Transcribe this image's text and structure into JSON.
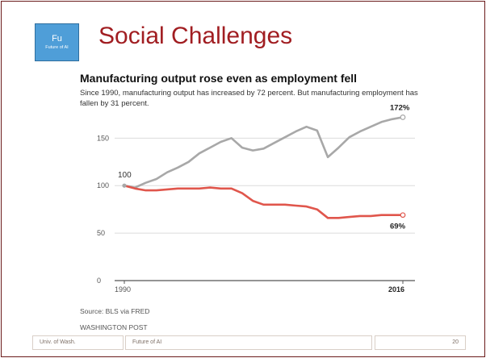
{
  "slide": {
    "badge_big": "Fu",
    "badge_small": "Future of AI",
    "title": "Social Challenges",
    "footer_left": "Univ. of Wash.",
    "footer_center": "Future of AI",
    "footer_right": "20"
  },
  "chart_data": {
    "type": "line",
    "title": "Manufacturing output rose even as employment fell",
    "subtitle": "Since 1990, manufacturing output has increased by 72 percent. But manufacturing employment has fallen by 31 percent.",
    "source": "Source: BLS via FRED",
    "publisher": "WASHINGTON POST",
    "xlabel": "",
    "ylabel": "",
    "x_ticks": [
      "1990",
      "2016"
    ],
    "y_ticks": [
      0,
      50,
      100,
      150
    ],
    "ylim": [
      0,
      180
    ],
    "xlim": [
      1990,
      2016
    ],
    "grid": true,
    "start_label": "100",
    "series": [
      {
        "color": "#a8a8a8",
        "end_label": "172%",
        "points": [
          [
            1990,
            100
          ],
          [
            1991,
            98
          ],
          [
            1992,
            103
          ],
          [
            1993,
            107
          ],
          [
            1994,
            114
          ],
          [
            1995,
            119
          ],
          [
            1996,
            125
          ],
          [
            1997,
            134
          ],
          [
            1998,
            140
          ],
          [
            1999,
            146
          ],
          [
            2000,
            150
          ],
          [
            2001,
            140
          ],
          [
            2002,
            137
          ],
          [
            2003,
            139
          ],
          [
            2004,
            145
          ],
          [
            2005,
            151
          ],
          [
            2006,
            157
          ],
          [
            2007,
            162
          ],
          [
            2008,
            158
          ],
          [
            2009,
            130
          ],
          [
            2010,
            140
          ],
          [
            2011,
            151
          ],
          [
            2012,
            157
          ],
          [
            2013,
            162
          ],
          [
            2014,
            167
          ],
          [
            2015,
            170
          ],
          [
            2016,
            172
          ]
        ]
      },
      {
        "color": "#e0564c",
        "end_label": "69%",
        "points": [
          [
            1990,
            100
          ],
          [
            1991,
            97
          ],
          [
            1992,
            95
          ],
          [
            1993,
            95
          ],
          [
            1994,
            96
          ],
          [
            1995,
            97
          ],
          [
            1996,
            97
          ],
          [
            1997,
            97
          ],
          [
            1998,
            98
          ],
          [
            1999,
            97
          ],
          [
            2000,
            97
          ],
          [
            2001,
            92
          ],
          [
            2002,
            84
          ],
          [
            2003,
            80
          ],
          [
            2004,
            80
          ],
          [
            2005,
            80
          ],
          [
            2006,
            79
          ],
          [
            2007,
            78
          ],
          [
            2008,
            75
          ],
          [
            2009,
            66
          ],
          [
            2010,
            66
          ],
          [
            2011,
            67
          ],
          [
            2012,
            68
          ],
          [
            2013,
            68
          ],
          [
            2014,
            69
          ],
          [
            2015,
            69
          ],
          [
            2016,
            69
          ]
        ]
      }
    ]
  }
}
